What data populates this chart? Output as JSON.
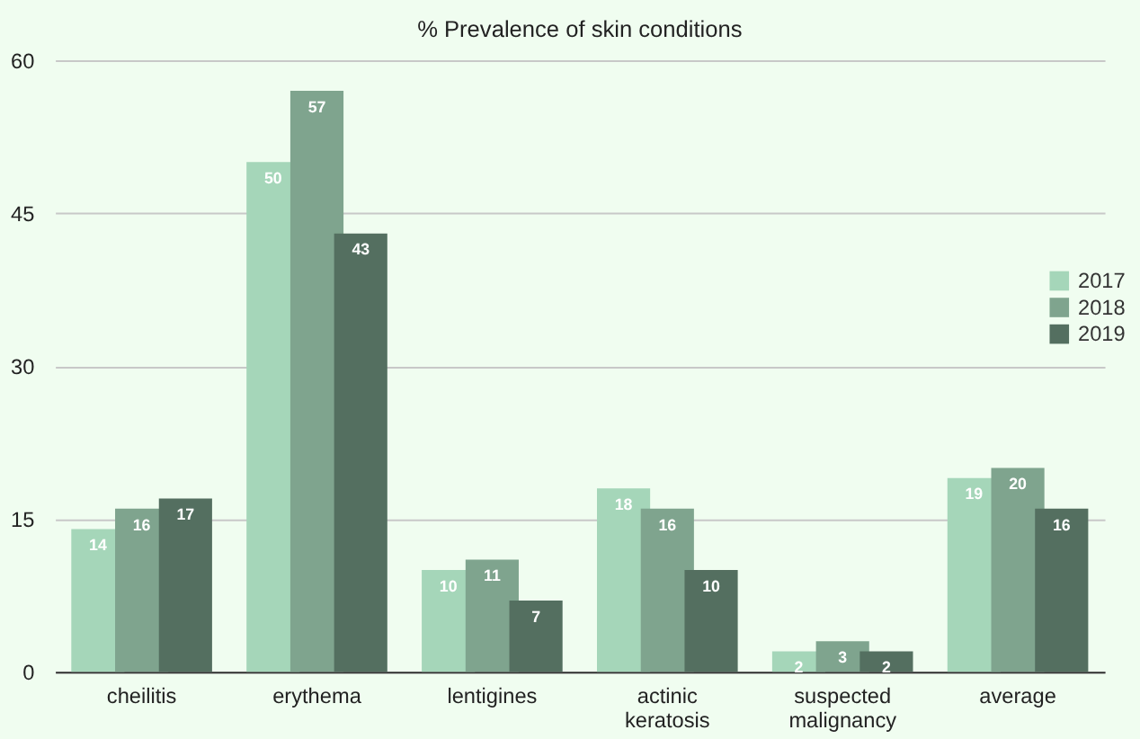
{
  "chart_data": {
    "type": "bar",
    "title": "% Prevalence of skin conditions",
    "categories": [
      "cheilitis",
      "erythema",
      "lentigines",
      "actinic keratosis",
      "suspected malignancy",
      "average"
    ],
    "series": [
      {
        "name": "2017",
        "color": "#a5d6b9",
        "values": [
          14,
          50,
          10,
          18,
          2,
          19
        ]
      },
      {
        "name": "2018",
        "color": "#7fa48e",
        "values": [
          16,
          57,
          11,
          16,
          3,
          20
        ]
      },
      {
        "name": "2019",
        "color": "#546f60",
        "values": [
          17,
          43,
          7,
          10,
          2,
          16
        ]
      }
    ],
    "ylim": [
      0,
      60
    ],
    "yticks": [
      0,
      15,
      30,
      45,
      60
    ],
    "grid": "y",
    "legend": "right",
    "data_labels": true
  }
}
